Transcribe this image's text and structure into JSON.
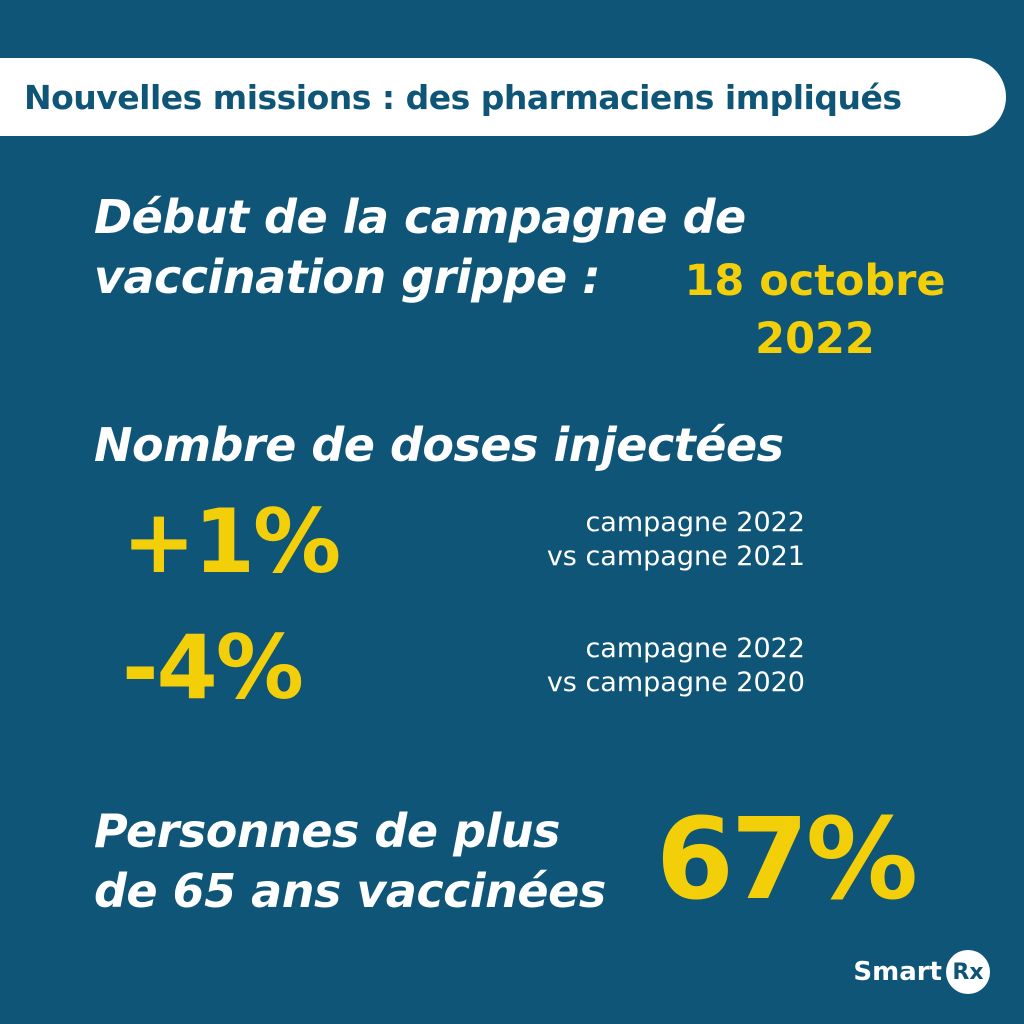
{
  "header": {
    "title": "Nouvelles missions : des pharmaciens impliqués"
  },
  "campaign": {
    "label_line1": "Début de la campagne de",
    "label_line2": "vaccination grippe :",
    "date_line1": "18 octobre",
    "date_line2": "2022"
  },
  "doses": {
    "title": "Nombre de doses injectées",
    "stats": [
      {
        "value": "+1%",
        "note_line1": "campagne 2022",
        "note_line2": "vs campagne 2021"
      },
      {
        "value": "-4%",
        "note_line1": "campagne 2022",
        "note_line2": "vs campagne 2020"
      }
    ]
  },
  "seniors": {
    "label_line1": "Personnes de plus",
    "label_line2": "de 65 ans vaccinées",
    "value": "67%"
  },
  "logo": {
    "text": "Smart",
    "badge": "Rx"
  },
  "colors": {
    "background": "#0f5577",
    "accent": "#f3cf0a",
    "text": "#ffffff"
  }
}
